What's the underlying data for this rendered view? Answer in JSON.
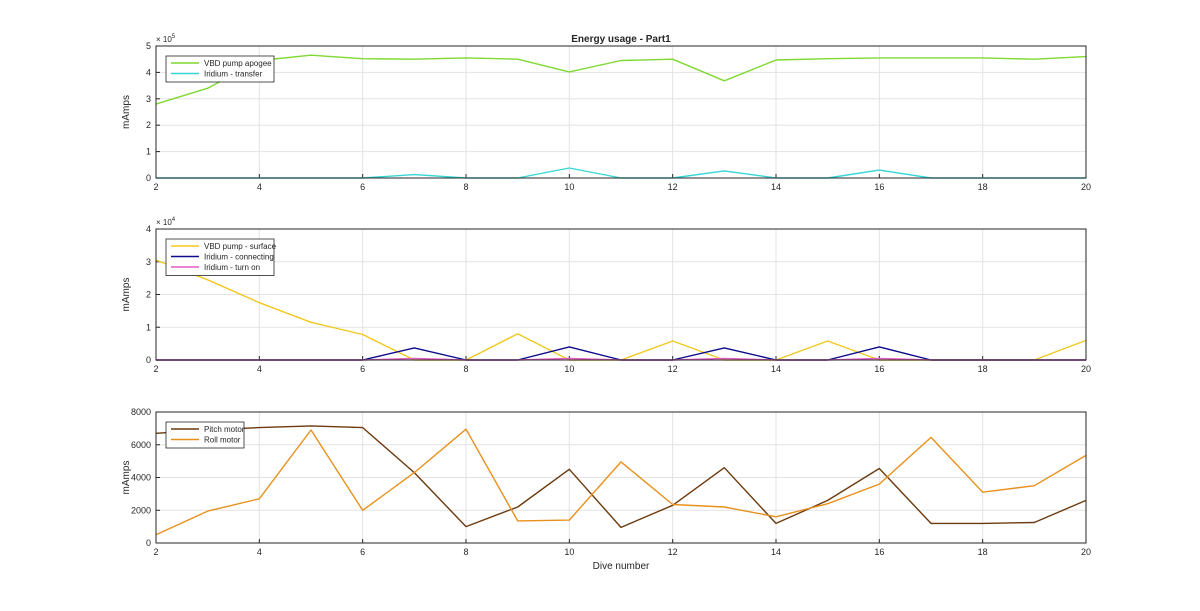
{
  "chart_data": [
    {
      "type": "line",
      "title": "Energy usage - Part1",
      "xlabel": "",
      "ylabel": "mAmps",
      "y_multiplier": "× 10^5",
      "y_multiplier_base": "× 10",
      "y_multiplier_exp": "5",
      "xlim": [
        2,
        20
      ],
      "ylim": [
        0,
        5
      ],
      "xticks": [
        "2",
        "4",
        "6",
        "8",
        "10",
        "12",
        "14",
        "16",
        "18",
        "20"
      ],
      "yticks": [
        "0",
        "1",
        "2",
        "3",
        "4",
        "5"
      ],
      "grid": true,
      "legend_position": "top-left",
      "x": [
        2,
        3,
        4,
        5,
        6,
        7,
        8,
        9,
        10,
        11,
        12,
        13,
        14,
        15,
        16,
        17,
        18,
        19,
        20
      ],
      "series": [
        {
          "name": "VBD pump apogee",
          "color": "#7fd932",
          "values": [
            2.8,
            3.4,
            4.45,
            4.65,
            4.52,
            4.5,
            4.55,
            4.5,
            4.02,
            4.45,
            4.5,
            3.68,
            4.47,
            4.52,
            4.55,
            4.55,
            4.55,
            4.5,
            4.6
          ]
        },
        {
          "name": "Iridium - transfer",
          "color": "#36d6d6",
          "values": [
            0,
            0,
            0,
            0,
            0,
            0.13,
            0,
            0,
            0.38,
            0,
            0,
            0.27,
            0,
            0,
            0.3,
            0,
            0,
            0,
            0
          ]
        }
      ]
    },
    {
      "type": "line",
      "title": "",
      "xlabel": "",
      "ylabel": "mAmps",
      "y_multiplier": "× 10^4",
      "y_multiplier_base": "× 10",
      "y_multiplier_exp": "4",
      "xlim": [
        2,
        20
      ],
      "ylim": [
        0,
        4
      ],
      "xticks": [
        "2",
        "4",
        "6",
        "8",
        "10",
        "12",
        "14",
        "16",
        "18",
        "20"
      ],
      "yticks": [
        "0",
        "1",
        "2",
        "3",
        "4"
      ],
      "grid": true,
      "legend_position": "top-left",
      "x": [
        2,
        3,
        4,
        5,
        6,
        7,
        8,
        9,
        10,
        11,
        12,
        13,
        14,
        15,
        16,
        17,
        18,
        19,
        20
      ],
      "series": [
        {
          "name": "VBD pump - surface",
          "color": "#f2c81f",
          "values": [
            3.05,
            2.45,
            1.75,
            1.15,
            0.78,
            0,
            0,
            0.8,
            0,
            0,
            0.58,
            0,
            0,
            0.58,
            0,
            0,
            0,
            0,
            0.6
          ]
        },
        {
          "name": "Iridium - connecting",
          "color": "#0b0b8c",
          "values": [
            0,
            0,
            0,
            0,
            0,
            0.37,
            0,
            0,
            0.4,
            0,
            0,
            0.37,
            0,
            0,
            0.4,
            0,
            0,
            0,
            0
          ]
        },
        {
          "name": "Iridium - turn on",
          "color": "#e65ac4",
          "values": [
            0,
            0,
            0,
            0,
            0,
            0.05,
            0,
            0,
            0.05,
            0,
            0,
            0.05,
            0,
            0,
            0.05,
            0,
            0,
            0,
            0
          ]
        }
      ]
    },
    {
      "type": "line",
      "title": "",
      "xlabel": "Dive number",
      "ylabel": "mAmps",
      "xlim": [
        2,
        20
      ],
      "ylim": [
        0,
        8000
      ],
      "xticks": [
        "2",
        "4",
        "6",
        "8",
        "10",
        "12",
        "14",
        "16",
        "18",
        "20"
      ],
      "yticks": [
        "0",
        "2000",
        "4000",
        "6000",
        "8000"
      ],
      "grid": true,
      "legend_position": "top-left",
      "x": [
        2,
        3,
        4,
        5,
        6,
        7,
        8,
        9,
        10,
        11,
        12,
        13,
        14,
        15,
        16,
        17,
        18,
        19,
        20
      ],
      "series": [
        {
          "name": "Pitch motor",
          "color": "#6b3a0e",
          "values": [
            6700,
            6900,
            7050,
            7150,
            7050,
            4300,
            1000,
            2200,
            4500,
            950,
            2300,
            4600,
            1200,
            2600,
            4550,
            1200,
            1200,
            1250,
            2600
          ]
        },
        {
          "name": "Roll motor",
          "color": "#e8901c",
          "values": [
            500,
            1950,
            2700,
            6900,
            2000,
            4300,
            6950,
            1350,
            1400,
            4950,
            2350,
            2200,
            1600,
            2400,
            3600,
            6450,
            3100,
            3500,
            5350
          ]
        }
      ]
    }
  ]
}
